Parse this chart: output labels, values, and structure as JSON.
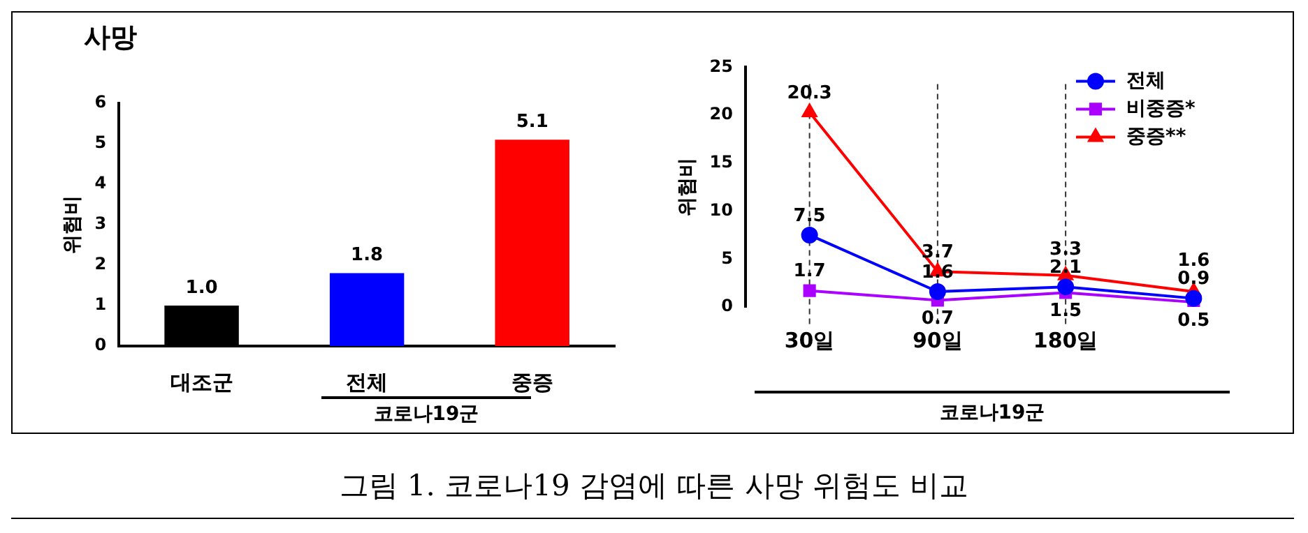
{
  "chart_data": [
    {
      "type": "bar",
      "title": "사망",
      "categories": [
        "대조군",
        "전체",
        "중증"
      ],
      "values": [
        1.0,
        1.8,
        5.1
      ],
      "colors": [
        "#000000",
        "#0000ff",
        "#ff0000"
      ],
      "value_labels": [
        "1.0",
        "1.8",
        "5.1"
      ],
      "ylabel": "위험비",
      "xlabel": "코로나19군",
      "ylim": [
        0,
        6
      ],
      "yticks": [
        0,
        1,
        2,
        3,
        4,
        5,
        6
      ],
      "grid": false
    },
    {
      "type": "line",
      "categories": [
        "30일",
        "90일",
        "180일",
        null
      ],
      "series": [
        {
          "name": "전체",
          "color": "#0000ff",
          "marker": "circle",
          "values": [
            7.5,
            1.6,
            2.1,
            0.9
          ]
        },
        {
          "name": "비중증*",
          "color": "#aa00ff",
          "marker": "square",
          "values": [
            1.7,
            0.7,
            1.5,
            0.5
          ]
        },
        {
          "name": "중증**",
          "color": "#ff0000",
          "marker": "triangle",
          "values": [
            20.3,
            3.7,
            3.3,
            1.6
          ]
        }
      ],
      "ylabel": "위험비",
      "xlabel": "코로나19군",
      "ylim": [
        0,
        25
      ],
      "yticks": [
        0,
        5,
        10,
        15,
        20,
        25
      ],
      "grid": false,
      "legend": "top right",
      "data_labels": true,
      "line_style": "solid",
      "ref_lines": [
        {
          "axis": "x",
          "value": "30일",
          "line_style": "dashed",
          "color": "#333333"
        },
        {
          "axis": "x",
          "value": "90일",
          "line_style": "dashed",
          "color": "#333333"
        },
        {
          "axis": "x",
          "value": "180일",
          "line_style": "dashed",
          "color": "#333333"
        }
      ],
      "annotations": [
        "그림 1. 코로나19 감염에 따른 사망 위험도 비교"
      ]
    }
  ]
}
